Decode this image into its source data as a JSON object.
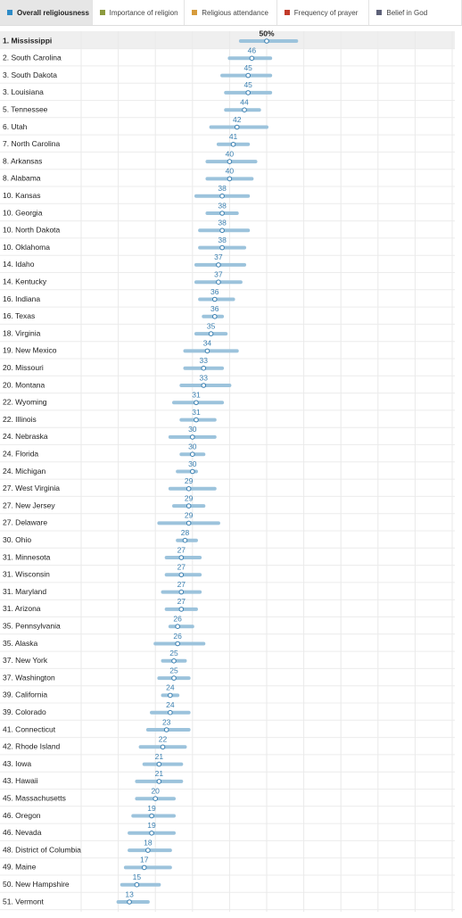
{
  "tabs": [
    {
      "label": "Overall religiousness",
      "color": "#2d8bc7",
      "active": true
    },
    {
      "label": "Importance of religion",
      "color": "#8c9a3e",
      "active": false
    },
    {
      "label": "Religious attendance",
      "color": "#d69b3c",
      "active": false
    },
    {
      "label": "Frequency of prayer",
      "color": "#c23b2a",
      "active": false
    },
    {
      "label": "Belief in God",
      "color": "#5d6178",
      "active": false
    }
  ],
  "chart_data": {
    "type": "dot-range",
    "categories": [
      "1. Mississippi",
      "2. South Carolina",
      "3. South Dakota",
      "3. Louisiana",
      "5. Tennessee",
      "6. Utah",
      "7. North Carolina",
      "8. Arkansas",
      "8. Alabama",
      "10. Kansas",
      "10. Georgia",
      "10. North Dakota",
      "10. Oklahoma",
      "14. Idaho",
      "14. Kentucky",
      "16. Indiana",
      "16. Texas",
      "18. Virginia",
      "19. New Mexico",
      "20. Missouri",
      "20. Montana",
      "22. Wyoming",
      "22. Illinois",
      "24. Nebraska",
      "24. Florida",
      "24. Michigan",
      "27. West Virginia",
      "27. New Jersey",
      "27. Delaware",
      "30. Ohio",
      "31. Minnesota",
      "31. Wisconsin",
      "31. Maryland",
      "31. Arizona",
      "35. Pennsylvania",
      "35. Alaska",
      "37. New York",
      "37. Washington",
      "39. California",
      "39. Colorado",
      "41. Connecticut",
      "42. Rhode Island",
      "43. Iowa",
      "43. Hawaii",
      "45. Massachusetts",
      "46. Oregon",
      "46. Nevada",
      "48. District of Columbia",
      "49. Maine",
      "50. New Hampshire",
      "51. Vermont"
    ],
    "values": [
      50,
      46,
      45,
      45,
      44,
      42,
      41,
      40,
      40,
      38,
      38,
      38,
      38,
      37,
      37,
      36,
      36,
      35,
      34,
      33,
      33,
      31,
      31,
      30,
      30,
      30,
      29,
      29,
      29,
      28,
      27,
      27,
      27,
      27,
      26,
      26,
      25,
      25,
      24,
      24,
      23,
      22,
      21,
      21,
      20,
      19,
      19,
      18,
      17,
      15,
      13
    ],
    "value_labels": [
      "50%",
      "46",
      "45",
      "45",
      "44",
      "42",
      "41",
      "40",
      "40",
      "38",
      "38",
      "38",
      "38",
      "37",
      "37",
      "36",
      "36",
      "35",
      "34",
      "33",
      "33",
      "31",
      "31",
      "30",
      "30",
      "30",
      "29",
      "29",
      "29",
      "28",
      "27",
      "27",
      "27",
      "27",
      "26",
      "26",
      "25",
      "25",
      "24",
      "24",
      "23",
      "22",
      "21",
      "21",
      "20",
      "19",
      "19",
      "18",
      "17",
      "15",
      "13"
    ],
    "ci_low": [
      43,
      40,
      38,
      39,
      39,
      35,
      37,
      34,
      34,
      31,
      34,
      32,
      32,
      31,
      31,
      32,
      33,
      31,
      28,
      28,
      27,
      25,
      27,
      24,
      27,
      26,
      24,
      25,
      21,
      26,
      23,
      23,
      22,
      23,
      24,
      20,
      22,
      21,
      22,
      19,
      18,
      16,
      17,
      15,
      15,
      14,
      13,
      13,
      12,
      11,
      10
    ],
    "ci_high": [
      58,
      51,
      51,
      51,
      48,
      50,
      45,
      47,
      46,
      45,
      42,
      45,
      44,
      44,
      43,
      41,
      38,
      39,
      42,
      38,
      40,
      38,
      36,
      36,
      33,
      31,
      36,
      33,
      37,
      31,
      32,
      32,
      32,
      31,
      30,
      33,
      28,
      29,
      26,
      29,
      29,
      28,
      27,
      27,
      25,
      25,
      25,
      24,
      24,
      21,
      18
    ],
    "color": "#9cc3dc",
    "dot_color": "#3a7fb0",
    "xlim": [
      0,
      100
    ],
    "xticks": [
      0,
      10,
      20,
      30,
      40,
      50,
      60,
      70,
      80,
      90,
      100
    ],
    "grid": true
  }
}
